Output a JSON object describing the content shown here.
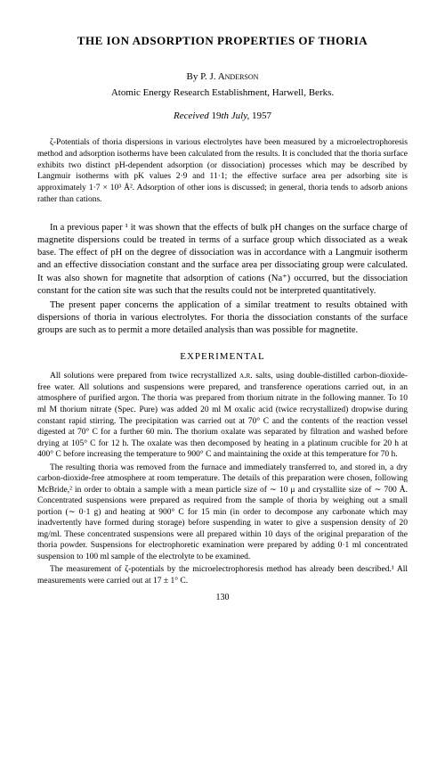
{
  "title": "THE ION ADSORPTION PROPERTIES OF THORIA",
  "byline_prefix": "By ",
  "author": "P. J. Anderson",
  "affiliation": "Atomic Energy Research Establishment, Harwell, Berks.",
  "received_prefix": "Received ",
  "received_day": "19",
  "received_suffix": "th July, ",
  "received_year": "1957",
  "abstract": "ζ-Potentials of thoria dispersions in various electrolytes have been measured by a microelectrophoresis method and adsorption isotherms have been calculated from the results. It is concluded that the thoria surface exhibits two distinct pH-dependent adsorption (or dissociation) processes which may be described by Langmuir isotherms with pK values 2·9 and 11·1; the effective surface area per adsorbing site is approximately 1·7 × 10³ Å². Adsorption of other ions is discussed; in general, thoria tends to adsorb anions rather than cations.",
  "intro_p1": "In a previous paper ¹ it was shown that the effects of bulk pH changes on the surface charge of magnetite dispersions could be treated in terms of a surface group which dissociated as a weak base. The effect of pH on the degree of dissociation was in accordance with a Langmuir isotherm and an effective dissociation constant and the surface area per dissociating group were calculated. It was also shown for magnetite that adsorption of cations (Na⁺) occurred, but the dissociation constant for the cation site was such that the results could not be interpreted quantitatively.",
  "intro_p2": "The present paper concerns the application of a similar treatment to results obtained with dispersions of thoria in various electrolytes. For thoria the dissociation constants of the surface groups are such as to permit a more detailed analysis than was possible for magnetite.",
  "section_experimental": "EXPERIMENTAL",
  "exp_p1_a": "All solutions were prepared from twice recrystallized ",
  "exp_p1_ar": "a.r.",
  "exp_p1_b": " salts, using double-distilled carbon-dioxide-free water. All solutions and suspensions were prepared, and transference operations carried out, in an atmosphere of purified argon. The thoria was prepared from thorium nitrate in the following manner. To 10 ml M thorium nitrate (Spec. Pure) was added 20 ml M oxalic acid (twice recrystallized) dropwise during constant rapid stirring. The precipitation was carried out at 70° C and the contents of the reaction vessel digested at 70° C for a further 60 min. The thorium oxalate was separated by filtration and washed before drying at 105° C for 12 h. The oxalate was then decomposed by heating in a platinum crucible for 20 h at 400° C before increasing the temperature to 900° C and maintaining the oxide at this temperature for 70 h.",
  "exp_p2": "The resulting thoria was removed from the furnace and immediately transferred to, and stored in, a dry carbon-dioxide-free atmosphere at room temperature. The details of this preparation were chosen, following McBride,² in order to obtain a sample with a mean particle size of ∼ 10 μ and crystallite size of ∼ 700 Å. Concentrated suspensions were prepared as required from the sample of thoria by weighing out a small portion (∼ 0·1 g) and heating at 900° C for 15 min (in order to decompose any carbonate which may inadvertently have formed during storage) before suspending in water to give a suspension density of 20 mg/ml. These concentrated suspensions were all prepared within 10 days of the original preparation of the thoria powder. Suspensions for electrophoretic examination were prepared by adding 0·1 ml concentrated suspension to 100 ml sample of the electrolyte to be examined.",
  "exp_p3": "The measurement of ζ-potentials by the microelectrophoresis method has already been described.¹ All measurements were carried out at 17 ± 1° C.",
  "page_number": "130"
}
